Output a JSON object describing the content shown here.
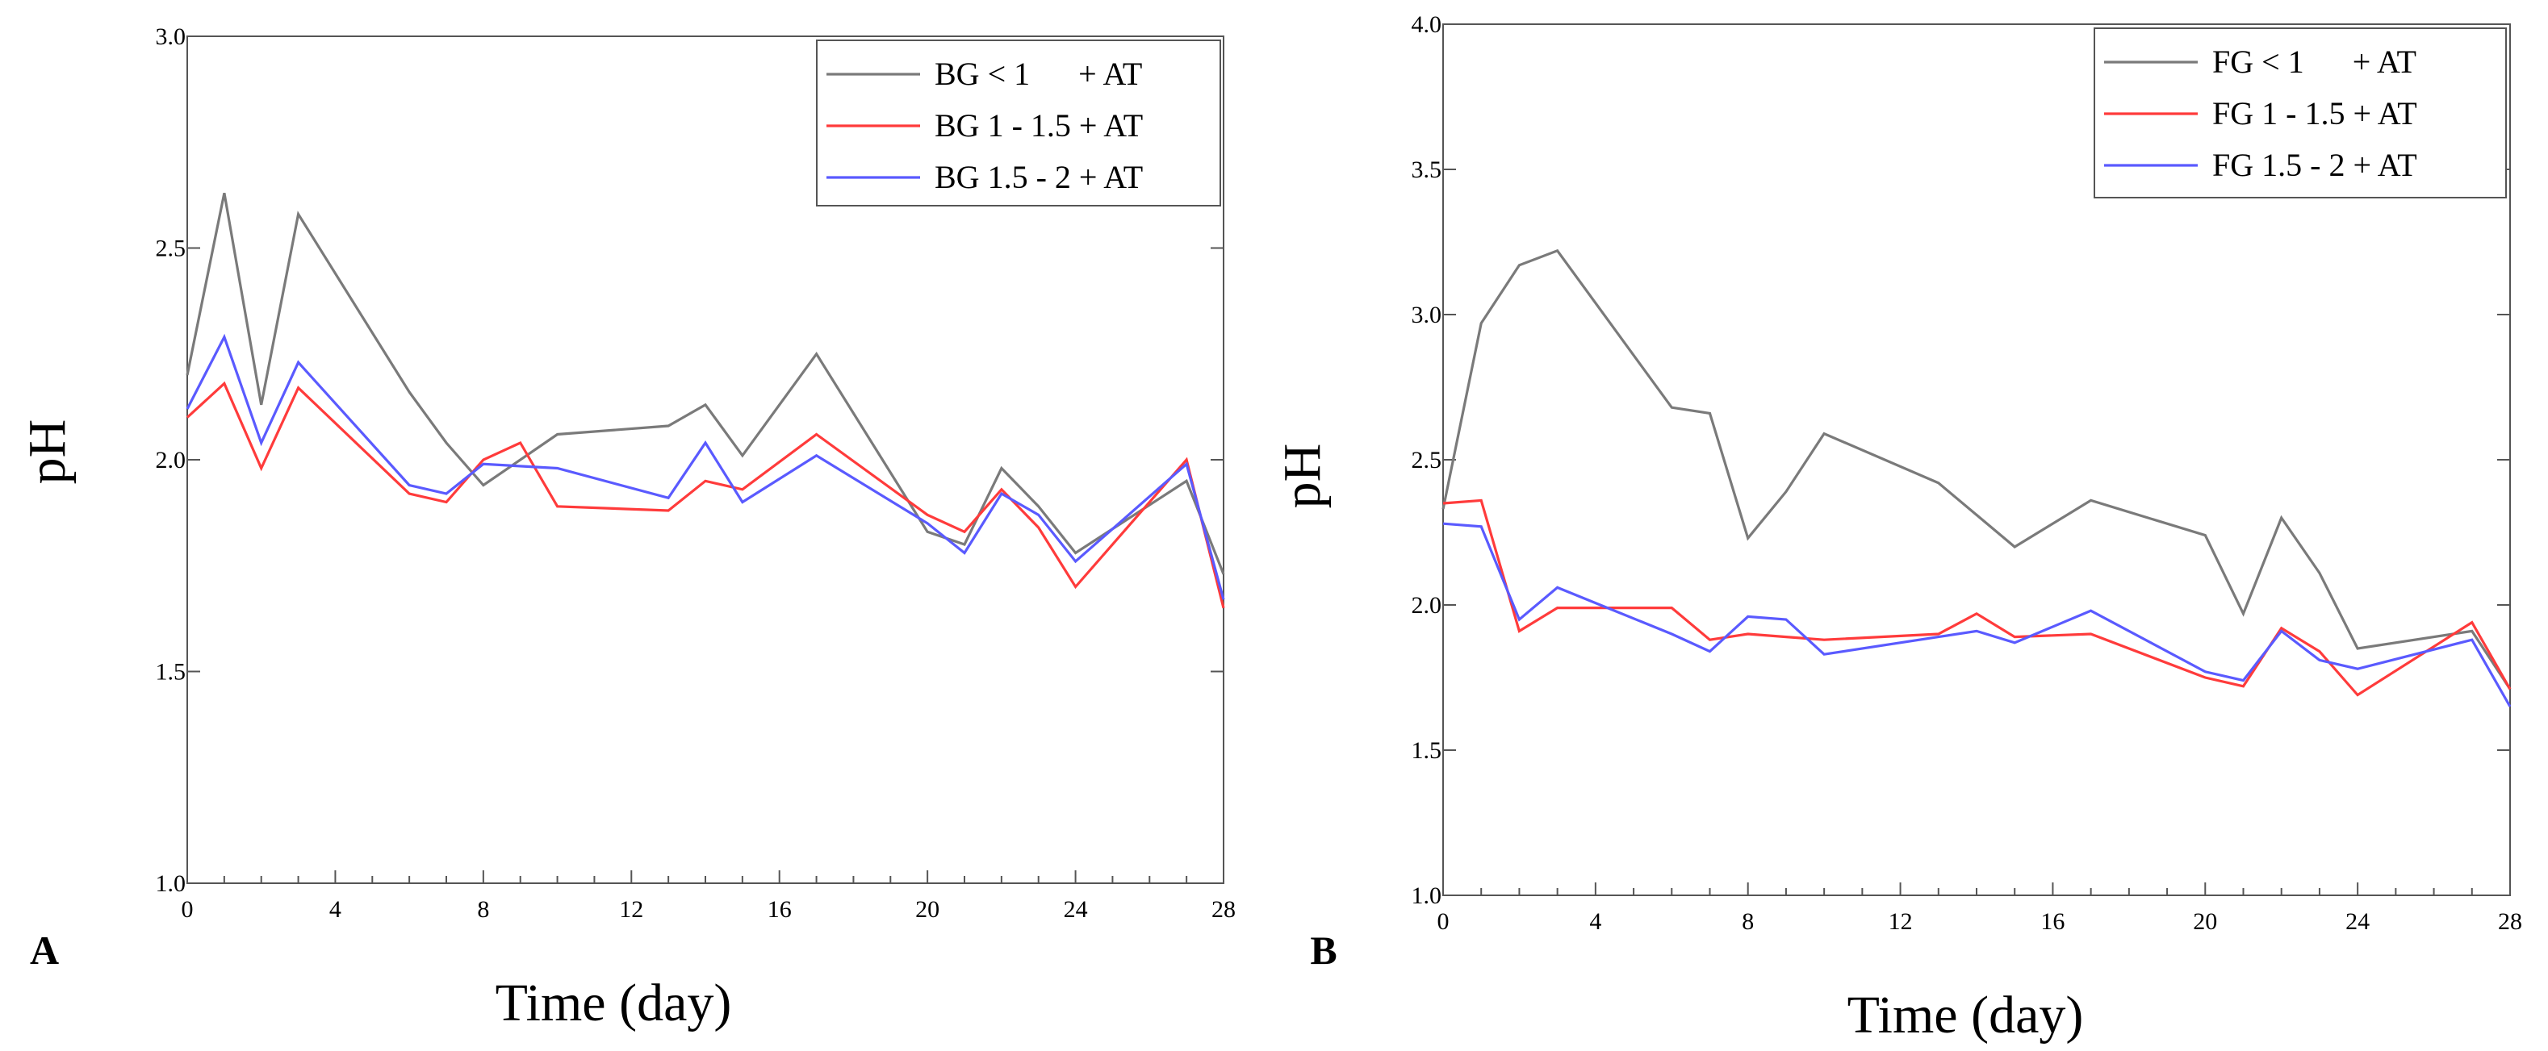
{
  "chart_data": [
    {
      "type": "line",
      "panel_label": "A",
      "title": "",
      "xlabel": "Time (day)",
      "ylabel": "pH",
      "xlim": [
        0,
        28
      ],
      "ylim": [
        1.0,
        3.0
      ],
      "xticks": [
        0,
        4,
        8,
        12,
        16,
        20,
        24,
        28
      ],
      "xtick_labels": [
        "0",
        "4",
        "8",
        "12",
        "16",
        "20",
        "24",
        "28"
      ],
      "yticks": [
        1.0,
        1.5,
        2.0,
        2.5,
        3.0
      ],
      "ytick_labels": [
        "1.0",
        "1.5",
        "2.0",
        "2.5",
        "3.0"
      ],
      "grid": false,
      "legend_position": "top-right",
      "series": [
        {
          "name": "BG < 1      + AT",
          "color": "#7a7a7a",
          "x": [
            0,
            1,
            2,
            3,
            6,
            7,
            8,
            10,
            13,
            14,
            15,
            17,
            20,
            21,
            22,
            23,
            24,
            27,
            28
          ],
          "y": [
            2.2,
            2.63,
            2.13,
            2.58,
            2.16,
            2.04,
            1.94,
            2.06,
            2.08,
            2.13,
            2.01,
            2.25,
            1.83,
            1.8,
            1.98,
            1.89,
            1.78,
            1.95,
            1.73
          ]
        },
        {
          "name": "BG 1 - 1.5 + AT",
          "color": "#ff3b3b",
          "x": [
            0,
            1,
            2,
            3,
            6,
            7,
            8,
            9,
            10,
            13,
            14,
            15,
            17,
            20,
            21,
            22,
            23,
            24,
            27,
            28
          ],
          "y": [
            2.1,
            2.18,
            1.98,
            2.17,
            1.92,
            1.9,
            2.0,
            2.04,
            1.89,
            1.88,
            1.95,
            1.93,
            2.06,
            1.87,
            1.83,
            1.93,
            1.84,
            1.7,
            2.0,
            1.65
          ]
        },
        {
          "name": "BG 1.5 - 2 + AT",
          "color": "#5a5aff",
          "x": [
            0,
            1,
            2,
            3,
            6,
            7,
            8,
            10,
            13,
            14,
            15,
            17,
            20,
            21,
            22,
            23,
            24,
            27,
            28
          ],
          "y": [
            2.12,
            2.29,
            2.04,
            2.23,
            1.94,
            1.92,
            1.99,
            1.98,
            1.91,
            2.04,
            1.9,
            2.01,
            1.85,
            1.78,
            1.92,
            1.87,
            1.76,
            1.99,
            1.67
          ]
        }
      ]
    },
    {
      "type": "line",
      "panel_label": "B",
      "title": "",
      "xlabel": "Time (day)",
      "ylabel": "pH",
      "xlim": [
        0,
        28
      ],
      "ylim": [
        1.0,
        4.0
      ],
      "xticks": [
        0,
        4,
        8,
        12,
        16,
        20,
        24,
        28
      ],
      "xtick_labels": [
        "0",
        "4",
        "8",
        "12",
        "16",
        "20",
        "24",
        "28"
      ],
      "yticks": [
        1.0,
        1.5,
        2.0,
        2.5,
        3.0,
        3.5,
        4.0
      ],
      "ytick_labels": [
        "1.0",
        "1.5",
        "2.0",
        "2.5",
        "3.0",
        "3.5",
        "4.0"
      ],
      "grid": false,
      "legend_position": "top-right",
      "series": [
        {
          "name": "FG < 1      + AT",
          "color": "#7a7a7a",
          "x": [
            0,
            1,
            2,
            3,
            6,
            7,
            8,
            9,
            10,
            13,
            14,
            15,
            17,
            20,
            21,
            22,
            23,
            24,
            27,
            28
          ],
          "y": [
            2.33,
            2.97,
            3.17,
            3.22,
            2.68,
            2.66,
            2.23,
            2.39,
            2.59,
            2.42,
            2.31,
            2.2,
            2.36,
            2.24,
            1.97,
            2.3,
            2.11,
            1.85,
            1.91,
            1.71
          ]
        },
        {
          "name": "FG 1 - 1.5 + AT",
          "color": "#ff3b3b",
          "x": [
            0,
            1,
            2,
            3,
            6,
            7,
            8,
            9,
            10,
            13,
            14,
            15,
            17,
            20,
            21,
            22,
            23,
            24,
            27,
            28
          ],
          "y": [
            2.35,
            2.36,
            1.91,
            1.99,
            1.99,
            1.88,
            1.9,
            1.89,
            1.88,
            1.9,
            1.97,
            1.89,
            1.9,
            1.75,
            1.72,
            1.92,
            1.84,
            1.69,
            1.94,
            1.71
          ]
        },
        {
          "name": "FG 1.5 - 2 + AT",
          "color": "#5a5aff",
          "x": [
            0,
            1,
            2,
            3,
            6,
            7,
            8,
            9,
            10,
            13,
            14,
            15,
            17,
            20,
            21,
            22,
            23,
            24,
            27,
            28
          ],
          "y": [
            2.28,
            2.27,
            1.95,
            2.06,
            1.9,
            1.84,
            1.96,
            1.95,
            1.83,
            1.89,
            1.91,
            1.87,
            1.98,
            1.77,
            1.74,
            1.91,
            1.81,
            1.78,
            1.88,
            1.65
          ]
        }
      ]
    }
  ]
}
